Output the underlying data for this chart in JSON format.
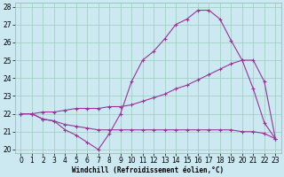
{
  "xlabel": "Windchill (Refroidissement éolien,°C)",
  "background_color": "#cce8f0",
  "grid_color": "#99ccbb",
  "line_color": "#993399",
  "xlim": [
    -0.5,
    23.5
  ],
  "ylim": [
    19.8,
    28.2
  ],
  "yticks": [
    20,
    21,
    22,
    23,
    24,
    25,
    26,
    27,
    28
  ],
  "xticks": [
    0,
    1,
    2,
    3,
    4,
    5,
    6,
    7,
    8,
    9,
    10,
    11,
    12,
    13,
    14,
    15,
    16,
    17,
    18,
    19,
    20,
    21,
    22,
    23
  ],
  "line1_x": [
    0,
    1,
    2,
    3,
    4,
    5,
    6,
    7,
    8,
    9,
    10,
    11,
    12,
    13,
    14,
    15,
    16,
    17,
    18,
    19,
    20,
    21,
    22,
    23
  ],
  "line1_y": [
    22.0,
    22.0,
    21.7,
    21.6,
    21.1,
    20.8,
    20.4,
    20.0,
    20.9,
    22.0,
    23.8,
    25.0,
    25.5,
    26.2,
    27.0,
    27.3,
    27.8,
    27.8,
    27.3,
    26.1,
    25.0,
    23.4,
    21.5,
    20.6
  ],
  "line2_x": [
    0,
    1,
    2,
    3,
    4,
    5,
    6,
    7,
    8,
    9,
    10,
    11,
    12,
    13,
    14,
    15,
    16,
    17,
    18,
    19,
    20,
    21,
    22,
    23
  ],
  "line2_y": [
    22.0,
    22.0,
    21.7,
    21.6,
    21.4,
    21.3,
    21.2,
    21.1,
    21.1,
    21.1,
    21.1,
    21.1,
    21.1,
    21.1,
    21.1,
    21.1,
    21.1,
    21.1,
    21.1,
    21.1,
    21.0,
    21.0,
    20.9,
    20.6
  ],
  "line3_x": [
    0,
    1,
    2,
    3,
    4,
    5,
    6,
    7,
    8,
    9,
    10,
    11,
    12,
    13,
    14,
    15,
    16,
    17,
    18,
    19,
    20,
    21,
    22,
    23
  ],
  "line3_y": [
    22.0,
    22.0,
    22.1,
    22.1,
    22.2,
    22.3,
    22.3,
    22.3,
    22.4,
    22.4,
    22.5,
    22.7,
    22.9,
    23.1,
    23.4,
    23.6,
    23.9,
    24.2,
    24.5,
    24.8,
    25.0,
    25.0,
    23.8,
    20.6
  ],
  "tick_fontsize": 5.5,
  "xlabel_fontsize": 5.5
}
